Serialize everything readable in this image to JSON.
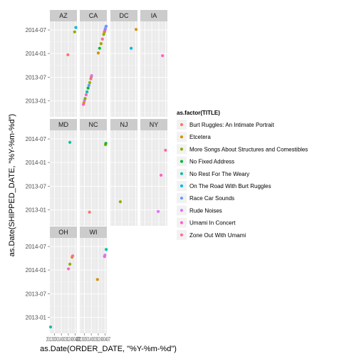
{
  "chart_data": {
    "type": "scatter",
    "xlabel": "as.Date(ORDER_DATE, \"%Y-%m-%d\")",
    "ylabel": "as.Date(SHIPPED_DATE, \"%Y-%m-%d\")",
    "x_tick_label_text": "20130301400302400407",
    "y_ticks": [
      {
        "value": "2013-01-01",
        "label": "2013-01"
      },
      {
        "value": "2013-07-01",
        "label": "2013-07"
      },
      {
        "value": "2014-01-01",
        "label": "2014-01"
      },
      {
        "value": "2014-07-01",
        "label": "2014-07"
      }
    ],
    "xlim": [
      "2012-09-01",
      "2014-08-15"
    ],
    "ylim": [
      "2012-09-01",
      "2014-09-05"
    ],
    "facet_columns": 4,
    "legend": {
      "title": "as.factor(TITLE)",
      "position": "right",
      "entries": [
        {
          "name": "Burt Ruggles: An Intimate Portrait",
          "color": "#F8766D"
        },
        {
          "name": "Etcetera",
          "color": "#D39200"
        },
        {
          "name": "More Songs About Structures and Comestibles",
          "color": "#93AA00"
        },
        {
          "name": "No Fixed Address",
          "color": "#00BA38"
        },
        {
          "name": "No Rest For The Weary",
          "color": "#00C19F"
        },
        {
          "name": "On The Road With Burt Ruggles",
          "color": "#00B9E3"
        },
        {
          "name": "Race Car Sounds",
          "color": "#619CFF"
        },
        {
          "name": "Rude Noises",
          "color": "#DB72FB"
        },
        {
          "name": "Umami In Concert",
          "color": "#FF61C3"
        },
        {
          "name": "Zone Out With Umami",
          "color": "#FF6C91"
        }
      ]
    },
    "panels": [
      {
        "label": "AZ",
        "points": [
          {
            "x": "2013-12-20",
            "y": "2013-12-22",
            "series": 0
          },
          {
            "x": "2014-06-15",
            "y": "2014-06-16",
            "series": 2
          },
          {
            "x": "2014-07-18",
            "y": "2014-07-20",
            "series": 5
          }
        ]
      },
      {
        "label": "CA",
        "points": [
          {
            "x": "2012-12-05",
            "y": "2012-12-05",
            "series": 8
          },
          {
            "x": "2012-12-20",
            "y": "2012-12-20",
            "series": 1
          },
          {
            "x": "2013-01-05",
            "y": "2013-01-05",
            "series": 7
          },
          {
            "x": "2013-01-20",
            "y": "2013-01-20",
            "series": 2
          },
          {
            "x": "2013-02-15",
            "y": "2013-02-18",
            "series": 8
          },
          {
            "x": "2013-03-10",
            "y": "2013-03-12",
            "series": 4
          },
          {
            "x": "2013-04-08",
            "y": "2013-04-10",
            "series": 3
          },
          {
            "x": "2013-05-01",
            "y": "2013-05-01",
            "series": 6
          },
          {
            "x": "2013-05-22",
            "y": "2013-05-22",
            "series": 2
          },
          {
            "x": "2013-06-18",
            "y": "2013-06-20",
            "series": 9
          },
          {
            "x": "2013-07-01",
            "y": "2013-07-05",
            "series": 1
          },
          {
            "x": "2013-07-10",
            "y": "2013-07-15",
            "series": 7
          },
          {
            "x": "2014-01-01",
            "y": "2014-01-05",
            "series": 1
          },
          {
            "x": "2014-02-05",
            "y": "2014-02-10",
            "series": 3
          },
          {
            "x": "2014-03-15",
            "y": "2014-03-18",
            "series": 2
          },
          {
            "x": "2014-04-20",
            "y": "2014-04-22",
            "series": 9
          },
          {
            "x": "2014-05-25",
            "y": "2014-05-28",
            "series": 2
          },
          {
            "x": "2014-06-10",
            "y": "2014-06-14",
            "series": 1
          },
          {
            "x": "2014-06-20",
            "y": "2014-06-22",
            "series": 1
          },
          {
            "x": "2014-06-28",
            "y": "2014-06-30",
            "series": 8
          },
          {
            "x": "2014-07-05",
            "y": "2014-07-08",
            "series": 6
          },
          {
            "x": "2014-07-18",
            "y": "2014-07-22",
            "series": 7
          },
          {
            "x": "2014-07-28",
            "y": "2014-07-30",
            "series": 6
          }
        ]
      },
      {
        "label": "DC",
        "points": [
          {
            "x": "2014-03-01",
            "y": "2014-02-10",
            "series": 5
          },
          {
            "x": "2014-07-10",
            "y": "2014-07-05",
            "series": 1
          }
        ]
      },
      {
        "label": "IA",
        "points": [
          {
            "x": "2014-04-10",
            "y": "2013-12-15",
            "series": 8
          }
        ]
      },
      {
        "label": "MD",
        "points": [
          {
            "x": "2014-02-10",
            "y": "2014-06-05",
            "series": 4
          }
        ]
      },
      {
        "label": "NC",
        "points": [
          {
            "x": "2013-05-15",
            "y": "2012-12-15",
            "series": 0
          },
          {
            "x": "2014-07-10",
            "y": "2014-05-18",
            "series": 2
          },
          {
            "x": "2014-07-20",
            "y": "2014-05-28",
            "series": 3
          }
        ]
      },
      {
        "label": "NJ",
        "points": [
          {
            "x": "2013-05-20",
            "y": "2013-03-05",
            "series": 2
          }
        ]
      },
      {
        "label": "NY",
        "points": [
          {
            "x": "2013-12-15",
            "y": "2012-12-20",
            "series": 7
          },
          {
            "x": "2014-03-01",
            "y": "2013-09-25",
            "series": 8
          },
          {
            "x": "2014-06-25",
            "y": "2014-04-05",
            "series": 9
          }
        ]
      },
      {
        "label": "OH",
        "points": [
          {
            "x": "2012-09-20",
            "y": "2012-10-20",
            "series": 4
          },
          {
            "x": "2014-01-05",
            "y": "2014-01-10",
            "series": 8
          },
          {
            "x": "2014-02-10",
            "y": "2014-02-15",
            "series": 2
          },
          {
            "x": "2014-04-10",
            "y": "2014-04-10",
            "series": 1
          },
          {
            "x": "2014-04-25",
            "y": "2014-04-20",
            "series": 9
          }
        ]
      },
      {
        "label": "WI",
        "points": [
          {
            "x": "2013-12-10",
            "y": "2013-10-20",
            "series": 1
          },
          {
            "x": "2014-06-15",
            "y": "2014-04-15",
            "series": 8
          },
          {
            "x": "2014-06-25",
            "y": "2014-04-25",
            "series": 7
          },
          {
            "x": "2014-07-30",
            "y": "2014-06-08",
            "series": 4
          }
        ]
      }
    ]
  }
}
